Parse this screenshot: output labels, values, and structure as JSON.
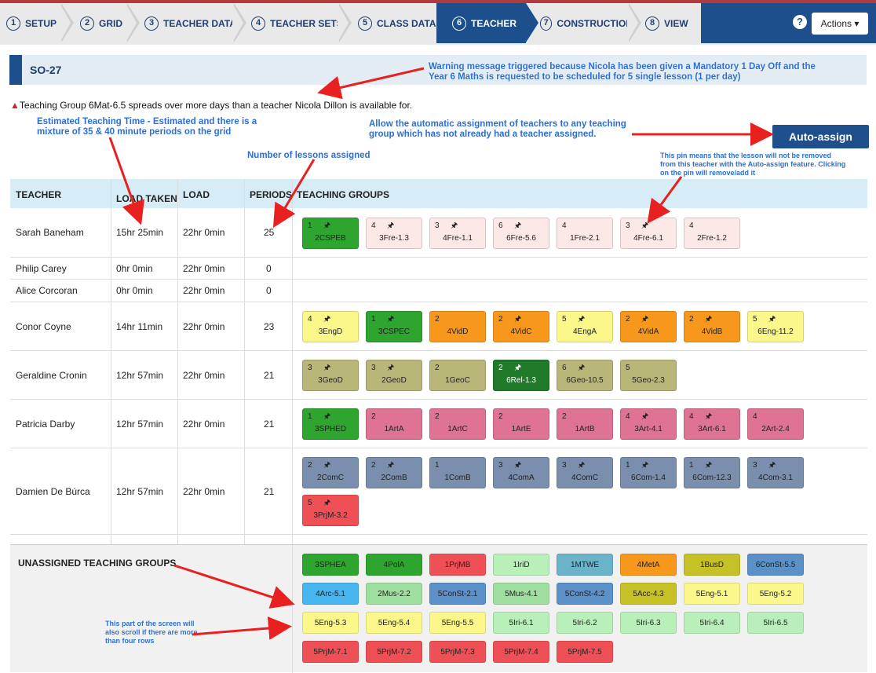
{
  "wizard": {
    "steps": [
      {
        "num": "1",
        "label": "SETUP"
      },
      {
        "num": "2",
        "label": "GRID"
      },
      {
        "num": "3",
        "label": "TEACHER DATA"
      },
      {
        "num": "4",
        "label": "TEACHER SETS"
      },
      {
        "num": "5",
        "label": "CLASS DATA"
      },
      {
        "num": "6",
        "label": "TEACHER"
      },
      {
        "num": "7",
        "label": "CONSTRUCTION"
      },
      {
        "num": "8",
        "label": "VIEW"
      }
    ],
    "help": "?",
    "actions": "Actions ▾"
  },
  "title": "SO-27",
  "warning": "Teaching Group 6Mat-6.5 spreads over more days than a teacher Nicola Dillon is available for.",
  "auto_assign": "Auto-assign",
  "notes": {
    "warning_note": "Warning message triggered because Nicola has been given a Mandatory 1 Day Off and the Year 6 Maths is requested to be scheduled for 5 single lesson (1 per day)",
    "time_note": "Estimated Teaching Time - Estimated and there is a mixture of 35 & 40 minute periods on the grid",
    "auto_note": "Allow the automatic assignment of teachers to any teaching group which has not already had a teacher assigned.",
    "lessons_note": "Number of lessons assigned",
    "pin_note": "This pin means that the lesson will not be removed from this teacher with the Auto-assign feature. Clicking on the pin will remove/add it",
    "scroll_note": "This part of the screen will also scroll if there are more than four rows"
  },
  "table": {
    "headers": [
      "TEACHER",
      "LOAD TAKEN",
      "LOAD",
      "PERIODS",
      "TEACHING GROUPS"
    ],
    "rows": [
      {
        "teacher": "Sarah Baneham",
        "taken": "15hr 25min",
        "load": "22hr 0min",
        "periods": "25"
      },
      {
        "teacher": "Philip Carey",
        "taken": "0hr 0min",
        "load": "22hr 0min",
        "periods": "0"
      },
      {
        "teacher": "Alice Corcoran",
        "taken": "0hr 0min",
        "load": "22hr 0min",
        "periods": "0"
      },
      {
        "teacher": "Conor Coyne",
        "taken": "14hr 11min",
        "load": "22hr 0min",
        "periods": "23"
      },
      {
        "teacher": "Geraldine Cronin",
        "taken": "12hr 57min",
        "load": "22hr 0min",
        "periods": "21"
      },
      {
        "teacher": "Patricia Darby",
        "taken": "12hr 57min",
        "load": "22hr 0min",
        "periods": "21"
      },
      {
        "teacher": "Damien De Búrca",
        "taken": "12hr 57min",
        "load": "22hr 0min",
        "periods": "21"
      }
    ]
  },
  "chips": {
    "sarah": [
      {
        "n": "1",
        "pin": "🖈",
        "l": "2CSPEB",
        "c": "#2ea52e",
        "dark": false
      },
      {
        "n": "4",
        "pin": "🖈",
        "l": "3Fre-1.3",
        "c": "#fde8e8",
        "dark": false
      },
      {
        "n": "3",
        "pin": "🖈",
        "l": "4Fre-1.1",
        "c": "#fde8e8",
        "dark": false
      },
      {
        "n": "6",
        "pin": "🖈",
        "l": "6Fre-5.6",
        "c": "#fde8e8",
        "dark": false
      },
      {
        "n": "4",
        "pin": "",
        "l": "1Fre-2.1",
        "c": "#fde8e8",
        "dark": false
      },
      {
        "n": "3",
        "pin": "🖈",
        "l": "4Fre-6.1",
        "c": "#fde8e8",
        "dark": false
      },
      {
        "n": "4",
        "pin": "",
        "l": "2Fre-1.2",
        "c": "#fde8e8",
        "dark": false
      }
    ],
    "conor": [
      {
        "n": "4",
        "pin": "🖈",
        "l": "3EngD",
        "c": "#fbf78a"
      },
      {
        "n": "1",
        "pin": "🖈",
        "l": "3CSPEC",
        "c": "#2ea52e"
      },
      {
        "n": "2",
        "pin": "",
        "l": "4VidD",
        "c": "#f7981d"
      },
      {
        "n": "2",
        "pin": "🖈",
        "l": "4VidC",
        "c": "#f7981d"
      },
      {
        "n": "5",
        "pin": "🖈",
        "l": "4EngA",
        "c": "#fbf78a"
      },
      {
        "n": "2",
        "pin": "🖈",
        "l": "4VidA",
        "c": "#f7981d"
      },
      {
        "n": "2",
        "pin": "🖈",
        "l": "4VidB",
        "c": "#f7981d"
      },
      {
        "n": "5",
        "pin": "🖈",
        "l": "6Eng-11.2",
        "c": "#fbf78a"
      }
    ],
    "geraldine": [
      {
        "n": "3",
        "pin": "🖈",
        "l": "3GeoD",
        "c": "#b8b678"
      },
      {
        "n": "3",
        "pin": "🖈",
        "l": "2GeoD",
        "c": "#b8b678"
      },
      {
        "n": "2",
        "pin": "",
        "l": "1GeoC",
        "c": "#b8b678"
      },
      {
        "n": "2",
        "pin": "🖈",
        "l": "6Rel-1.3",
        "c": "#1f7a2a"
      },
      {
        "n": "6",
        "pin": "🖈",
        "l": "6Geo-10.5",
        "c": "#b8b678"
      },
      {
        "n": "5",
        "pin": "",
        "l": "5Geo-2.3",
        "c": "#b8b678"
      }
    ],
    "patricia": [
      {
        "n": "1",
        "pin": "🖈",
        "l": "3SPHED",
        "c": "#2ea52e"
      },
      {
        "n": "2",
        "pin": "",
        "l": "1ArtA",
        "c": "#de7393"
      },
      {
        "n": "2",
        "pin": "",
        "l": "1ArtC",
        "c": "#de7393"
      },
      {
        "n": "2",
        "pin": "",
        "l": "1ArtE",
        "c": "#de7393"
      },
      {
        "n": "2",
        "pin": "",
        "l": "1ArtB",
        "c": "#de7393"
      },
      {
        "n": "4",
        "pin": "🖈",
        "l": "3Art-4.1",
        "c": "#de7393"
      },
      {
        "n": "4",
        "pin": "🖈",
        "l": "3Art-6.1",
        "c": "#de7393"
      },
      {
        "n": "4",
        "pin": "",
        "l": "2Art-2.4",
        "c": "#de7393"
      }
    ],
    "damien": [
      {
        "n": "2",
        "pin": "🖈",
        "l": "2ComC",
        "c": "#7a8fad"
      },
      {
        "n": "2",
        "pin": "🖈",
        "l": "2ComB",
        "c": "#7a8fad"
      },
      {
        "n": "1",
        "pin": "",
        "l": "1ComB",
        "c": "#7a8fad"
      },
      {
        "n": "3",
        "pin": "🖈",
        "l": "4ComA",
        "c": "#7a8fad"
      },
      {
        "n": "3",
        "pin": "🖈",
        "l": "4ComC",
        "c": "#7a8fad"
      },
      {
        "n": "1",
        "pin": "🖈",
        "l": "6Com-1.4",
        "c": "#7a8fad"
      },
      {
        "n": "1",
        "pin": "🖈",
        "l": "6Com-12.3",
        "c": "#7a8fad"
      },
      {
        "n": "3",
        "pin": "🖈",
        "l": "4Com-3.1",
        "c": "#7a8fad"
      },
      {
        "n": "5",
        "pin": "🖈",
        "l": "3PrjM-3.2",
        "c": "#ee5055"
      }
    ]
  },
  "unassigned": {
    "title": "UNASSIGNED TEACHING GROUPS",
    "rows": [
      [
        {
          "l": "3SPHEA",
          "c": "#2ea52e"
        },
        {
          "l": "4PolA",
          "c": "#2ea52e"
        },
        {
          "l": "1PrjMB",
          "c": "#ee5055"
        },
        {
          "l": "1IriD",
          "c": "#b9efb9"
        },
        {
          "l": "1MTWE",
          "c": "#6ab3c8"
        },
        {
          "l": "4MetA",
          "c": "#f7981d"
        },
        {
          "l": "1BusD",
          "c": "#c6c126"
        },
        {
          "l": "6ConSt-5.5",
          "c": "#5b90c8"
        }
      ],
      [
        {
          "l": "4Arc-5.1",
          "c": "#47b5ee"
        },
        {
          "l": "2Mus-2.2",
          "c": "#9fdf9f"
        },
        {
          "l": "5ConSt-2.1",
          "c": "#5b90c8"
        },
        {
          "l": "5Mus-4.1",
          "c": "#9fdf9f"
        },
        {
          "l": "5ConSt-4.2",
          "c": "#5b90c8"
        },
        {
          "l": "5Acc-4.3",
          "c": "#c6c126"
        },
        {
          "l": "5Eng-5.1",
          "c": "#fbf78a"
        },
        {
          "l": "5Eng-5.2",
          "c": "#fbf78a"
        }
      ],
      [
        {
          "l": "5Eng-5.3",
          "c": "#fbf78a"
        },
        {
          "l": "5Eng-5.4",
          "c": "#fbf78a"
        },
        {
          "l": "5Eng-5.5",
          "c": "#fbf78a"
        },
        {
          "l": "5Iri-6.1",
          "c": "#b9efb9"
        },
        {
          "l": "5Iri-6.2",
          "c": "#b9efb9"
        },
        {
          "l": "5Iri-6.3",
          "c": "#b9efb9"
        },
        {
          "l": "5Iri-6.4",
          "c": "#b9efb9"
        },
        {
          "l": "5Iri-6.5",
          "c": "#b9efb9"
        }
      ],
      [
        {
          "l": "5PrjM-7.1",
          "c": "#ee5055"
        },
        {
          "l": "5PrjM-7.2",
          "c": "#ee5055"
        },
        {
          "l": "5PrjM-7.3",
          "c": "#ee5055"
        },
        {
          "l": "5PrjM-7.4",
          "c": "#ee5055"
        },
        {
          "l": "5PrjM-7.5",
          "c": "#ee5055"
        }
      ]
    ]
  }
}
